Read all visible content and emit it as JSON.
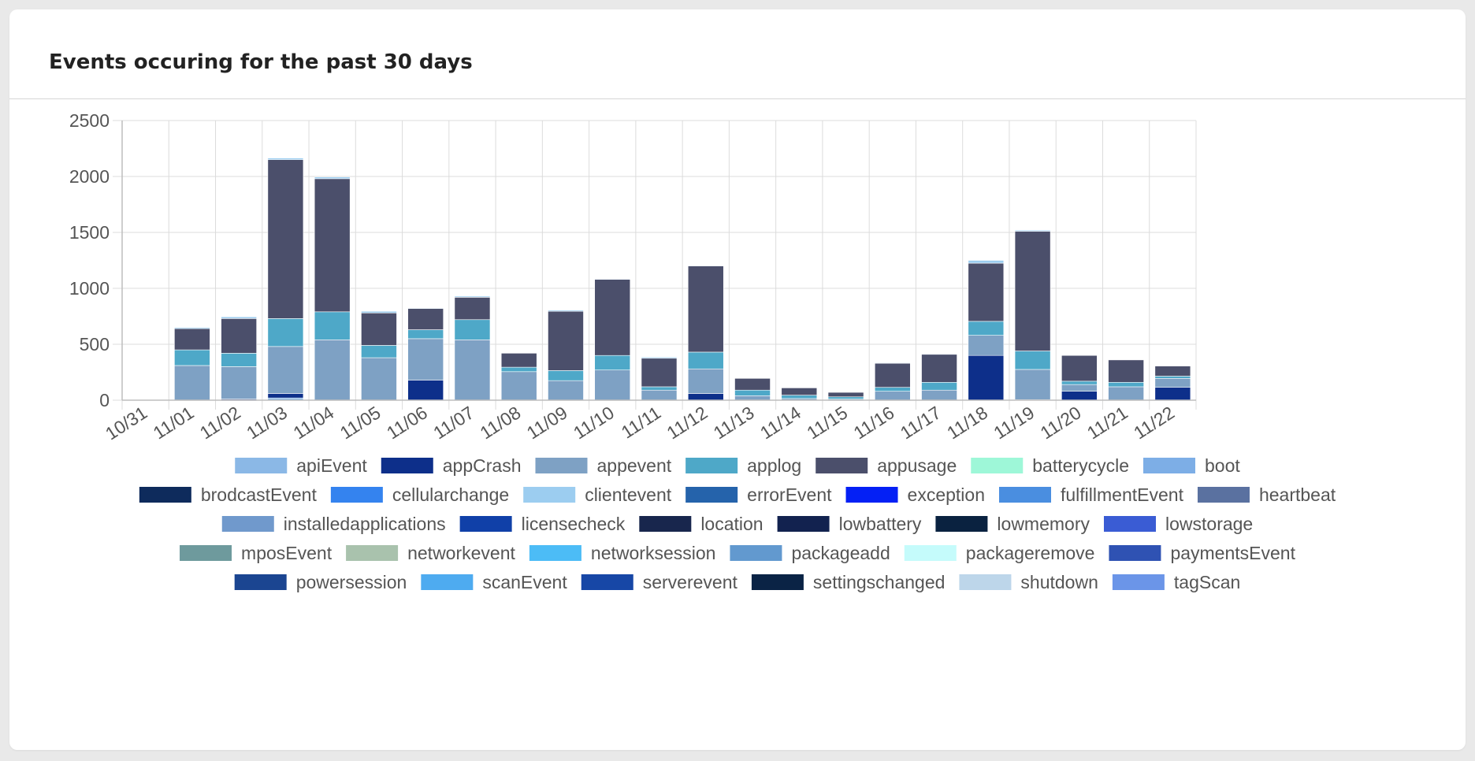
{
  "card": {
    "title": "Events occuring for the past 30 days"
  },
  "chart_data": {
    "type": "bar",
    "stacked": true,
    "title": "Events occuring for the past 30 days",
    "xlabel": "",
    "ylabel": "",
    "ylim": [
      0,
      2500
    ],
    "yticks": [
      0,
      500,
      1000,
      1500,
      2000,
      2500
    ],
    "grid": true,
    "legend_position": "bottom",
    "categories": [
      "10/31",
      "11/01",
      "11/02",
      "11/03",
      "11/04",
      "11/05",
      "11/06",
      "11/07",
      "11/08",
      "11/09",
      "11/10",
      "11/11",
      "11/12",
      "11/13",
      "11/14",
      "11/15",
      "11/16",
      "11/17",
      "11/18",
      "11/19",
      "11/20",
      "11/21",
      "11/22"
    ],
    "series": [
      {
        "name": "apiEvent",
        "color": "#8bb8e6",
        "values": [
          0,
          0,
          0,
          20,
          0,
          0,
          0,
          0,
          0,
          0,
          0,
          0,
          0,
          0,
          0,
          0,
          0,
          0,
          0,
          0,
          0,
          0,
          0
        ]
      },
      {
        "name": "appCrash",
        "color": "#0d2f8a",
        "values": [
          0,
          0,
          10,
          40,
          0,
          0,
          180,
          0,
          0,
          0,
          0,
          0,
          60,
          0,
          0,
          0,
          0,
          0,
          400,
          5,
          80,
          0,
          115
        ]
      },
      {
        "name": "appevent",
        "color": "#7ea1c4",
        "values": [
          0,
          310,
          290,
          420,
          540,
          380,
          370,
          540,
          255,
          175,
          270,
          90,
          220,
          40,
          15,
          10,
          80,
          90,
          180,
          270,
          60,
          120,
          80
        ]
      },
      {
        "name": "applog",
        "color": "#4ea8c8",
        "values": [
          0,
          140,
          120,
          250,
          250,
          110,
          80,
          180,
          40,
          90,
          130,
          30,
          150,
          50,
          30,
          20,
          35,
          70,
          125,
          165,
          30,
          40,
          20
        ]
      },
      {
        "name": "appusage",
        "color": "#4b4f6b",
        "values": [
          0,
          190,
          310,
          1420,
          1190,
          290,
          190,
          200,
          125,
          530,
          680,
          255,
          770,
          105,
          65,
          40,
          215,
          250,
          520,
          1070,
          230,
          200,
          90
        ]
      },
      {
        "name": "batterycycle",
        "color": "#9ef7d8",
        "values": [
          0,
          0,
          0,
          0,
          0,
          0,
          0,
          0,
          0,
          0,
          0,
          0,
          0,
          0,
          0,
          0,
          0,
          0,
          0,
          0,
          0,
          0,
          0
        ]
      },
      {
        "name": "boot",
        "color": "#7daee6",
        "values": [
          0,
          0,
          0,
          0,
          0,
          0,
          0,
          0,
          0,
          0,
          0,
          0,
          0,
          0,
          0,
          0,
          0,
          0,
          0,
          0,
          0,
          0,
          0
        ]
      },
      {
        "name": "brodcastEvent",
        "color": "#0e2b5c",
        "values": [
          0,
          0,
          0,
          0,
          0,
          0,
          0,
          0,
          0,
          0,
          0,
          0,
          0,
          0,
          0,
          0,
          0,
          0,
          0,
          0,
          0,
          0,
          0
        ]
      },
      {
        "name": "cellularchange",
        "color": "#3483ef",
        "values": [
          0,
          0,
          0,
          0,
          0,
          0,
          0,
          0,
          0,
          0,
          0,
          0,
          0,
          0,
          0,
          0,
          0,
          0,
          0,
          0,
          0,
          0,
          0
        ]
      },
      {
        "name": "clientevent",
        "color": "#9ccdf0",
        "values": [
          0,
          10,
          15,
          15,
          15,
          15,
          5,
          10,
          0,
          10,
          5,
          10,
          5,
          0,
          0,
          0,
          5,
          5,
          25,
          10,
          0,
          0,
          0
        ]
      },
      {
        "name": "errorEvent",
        "color": "#2563ab",
        "values": [
          0,
          0,
          0,
          0,
          0,
          0,
          0,
          0,
          0,
          0,
          0,
          0,
          0,
          0,
          0,
          0,
          0,
          0,
          0,
          0,
          0,
          0,
          0
        ]
      },
      {
        "name": "exception",
        "color": "#0420f5",
        "values": [
          0,
          0,
          0,
          0,
          0,
          0,
          0,
          0,
          0,
          0,
          0,
          0,
          0,
          0,
          0,
          0,
          0,
          0,
          0,
          0,
          0,
          0,
          0
        ]
      },
      {
        "name": "fulfillmentEvent",
        "color": "#4a8ee0",
        "values": [
          0,
          0,
          0,
          0,
          0,
          0,
          0,
          0,
          0,
          0,
          0,
          0,
          0,
          0,
          0,
          0,
          0,
          0,
          0,
          0,
          0,
          0,
          0
        ]
      },
      {
        "name": "heartbeat",
        "color": "#5a71a0",
        "values": [
          0,
          0,
          0,
          0,
          0,
          0,
          0,
          0,
          0,
          0,
          0,
          0,
          0,
          0,
          0,
          0,
          0,
          0,
          0,
          0,
          0,
          0,
          0
        ]
      },
      {
        "name": "installedapplications",
        "color": "#7099cc",
        "values": [
          0,
          0,
          0,
          0,
          0,
          0,
          0,
          0,
          0,
          0,
          0,
          0,
          0,
          0,
          0,
          0,
          0,
          0,
          0,
          0,
          0,
          0,
          0
        ]
      },
      {
        "name": "licensecheck",
        "color": "#1040a8",
        "values": [
          0,
          0,
          0,
          0,
          0,
          0,
          0,
          0,
          0,
          0,
          0,
          0,
          0,
          0,
          0,
          0,
          0,
          0,
          0,
          0,
          0,
          0,
          0
        ]
      },
      {
        "name": "location",
        "color": "#18264d",
        "values": [
          0,
          0,
          0,
          0,
          0,
          0,
          0,
          0,
          0,
          0,
          0,
          0,
          0,
          0,
          0,
          0,
          0,
          0,
          0,
          0,
          0,
          0,
          0
        ]
      },
      {
        "name": "lowbattery",
        "color": "#12224f",
        "values": [
          0,
          0,
          0,
          0,
          0,
          0,
          0,
          0,
          0,
          0,
          0,
          0,
          0,
          0,
          0,
          0,
          0,
          0,
          0,
          0,
          0,
          0,
          0
        ]
      },
      {
        "name": "lowmemory",
        "color": "#0a2240",
        "values": [
          0,
          0,
          0,
          0,
          0,
          0,
          0,
          0,
          0,
          0,
          0,
          0,
          0,
          0,
          0,
          0,
          0,
          0,
          0,
          0,
          0,
          0,
          0
        ]
      },
      {
        "name": "lowstorage",
        "color": "#3a5cd4",
        "values": [
          0,
          0,
          0,
          0,
          0,
          0,
          0,
          0,
          0,
          0,
          0,
          0,
          0,
          0,
          0,
          0,
          0,
          0,
          0,
          0,
          0,
          0,
          0
        ]
      },
      {
        "name": "mposEvent",
        "color": "#6e9a9d",
        "values": [
          0,
          0,
          0,
          0,
          0,
          0,
          0,
          0,
          0,
          0,
          0,
          0,
          0,
          0,
          0,
          0,
          0,
          0,
          0,
          0,
          0,
          0,
          0
        ]
      },
      {
        "name": "networkevent",
        "color": "#a9c2ad",
        "values": [
          0,
          0,
          0,
          0,
          0,
          0,
          0,
          0,
          0,
          0,
          0,
          0,
          0,
          0,
          0,
          0,
          0,
          0,
          0,
          0,
          0,
          0,
          0
        ]
      },
      {
        "name": "networksession",
        "color": "#4cbcf6",
        "values": [
          0,
          0,
          0,
          0,
          0,
          0,
          0,
          0,
          0,
          0,
          0,
          0,
          0,
          0,
          0,
          0,
          0,
          0,
          0,
          0,
          0,
          0,
          0
        ]
      },
      {
        "name": "packageadd",
        "color": "#6299cf",
        "values": [
          0,
          0,
          0,
          0,
          0,
          0,
          0,
          0,
          0,
          0,
          0,
          0,
          0,
          0,
          0,
          0,
          0,
          0,
          0,
          0,
          0,
          0,
          0
        ]
      },
      {
        "name": "packageremove",
        "color": "#c5fbfb",
        "values": [
          0,
          0,
          0,
          0,
          0,
          0,
          0,
          0,
          0,
          0,
          0,
          0,
          0,
          0,
          0,
          0,
          0,
          0,
          0,
          0,
          0,
          0,
          0
        ]
      },
      {
        "name": "paymentsEvent",
        "color": "#2f52b3",
        "values": [
          0,
          0,
          0,
          0,
          0,
          0,
          0,
          0,
          0,
          0,
          0,
          0,
          0,
          0,
          0,
          0,
          0,
          0,
          0,
          0,
          0,
          0,
          0
        ]
      },
      {
        "name": "powersession",
        "color": "#1b4591",
        "values": [
          0,
          0,
          0,
          0,
          0,
          0,
          0,
          0,
          0,
          0,
          0,
          0,
          0,
          0,
          0,
          0,
          0,
          0,
          0,
          0,
          0,
          0,
          0
        ]
      },
      {
        "name": "scanEvent",
        "color": "#4eabf0",
        "values": [
          0,
          0,
          0,
          0,
          0,
          0,
          0,
          0,
          0,
          0,
          0,
          0,
          0,
          0,
          0,
          0,
          0,
          0,
          0,
          0,
          0,
          0,
          0
        ]
      },
      {
        "name": "serverevent",
        "color": "#1747a6",
        "values": [
          0,
          0,
          0,
          0,
          0,
          0,
          0,
          0,
          0,
          0,
          0,
          0,
          0,
          0,
          0,
          0,
          0,
          0,
          0,
          0,
          0,
          0,
          0
        ]
      },
      {
        "name": "settingschanged",
        "color": "#0a2345",
        "values": [
          0,
          0,
          0,
          0,
          0,
          0,
          0,
          0,
          0,
          0,
          0,
          0,
          0,
          0,
          0,
          0,
          0,
          0,
          0,
          0,
          0,
          0,
          0
        ]
      },
      {
        "name": "shutdown",
        "color": "#bdd6ea",
        "values": [
          0,
          0,
          0,
          0,
          0,
          0,
          0,
          0,
          0,
          0,
          0,
          0,
          0,
          0,
          0,
          0,
          0,
          0,
          0,
          0,
          0,
          0,
          0
        ]
      },
      {
        "name": "tagScan",
        "color": "#6b95e8",
        "values": [
          0,
          0,
          0,
          0,
          0,
          0,
          0,
          0,
          0,
          0,
          0,
          0,
          0,
          0,
          0,
          0,
          0,
          0,
          0,
          0,
          0,
          0,
          0
        ]
      }
    ],
    "legend_rows": [
      [
        "apiEvent",
        "appCrash",
        "appevent",
        "applog",
        "appusage",
        "batterycycle",
        "boot"
      ],
      [
        "brodcastEvent",
        "cellularchange",
        "clientevent",
        "errorEvent",
        "exception",
        "fulfillmentEvent",
        "heartbeat"
      ],
      [
        "installedapplications",
        "licensecheck",
        "location",
        "lowbattery",
        "lowmemory",
        "lowstorage"
      ],
      [
        "mposEvent",
        "networkevent",
        "networksession",
        "packageadd",
        "packageremove",
        "paymentsEvent"
      ],
      [
        "powersession",
        "scanEvent",
        "serverevent",
        "settingschanged",
        "shutdown",
        "tagScan"
      ]
    ]
  }
}
